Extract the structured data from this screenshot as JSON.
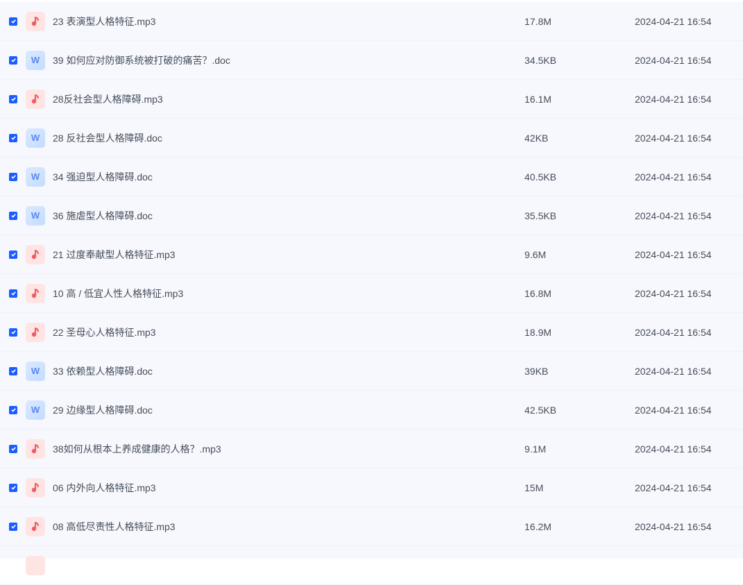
{
  "colors": {
    "checkbox": "#1a5cff",
    "mp3_icon": "#f25b63",
    "doc_icon": "#5a86f0",
    "background": "#f7f8fe"
  },
  "files": [
    {
      "name": "23 表演型人格特征.mp3",
      "type": "mp3",
      "size": "17.8M",
      "date": "2024-04-21 16:54",
      "checked": true
    },
    {
      "name": "39 如何应对防御系统被打破的痛苦？.doc",
      "type": "doc",
      "size": "34.5KB",
      "date": "2024-04-21 16:54",
      "checked": true
    },
    {
      "name": "28反社会型人格障碍.mp3",
      "type": "mp3",
      "size": "16.1M",
      "date": "2024-04-21 16:54",
      "checked": true
    },
    {
      "name": "28 反社会型人格障碍.doc",
      "type": "doc",
      "size": "42KB",
      "date": "2024-04-21 16:54",
      "checked": true
    },
    {
      "name": "34 强迫型人格障碍.doc",
      "type": "doc",
      "size": "40.5KB",
      "date": "2024-04-21 16:54",
      "checked": true
    },
    {
      "name": "36 施虐型人格障碍.doc",
      "type": "doc",
      "size": "35.5KB",
      "date": "2024-04-21 16:54",
      "checked": true
    },
    {
      "name": "21 过度奉献型人格特征.mp3",
      "type": "mp3",
      "size": "9.6M",
      "date": "2024-04-21 16:54",
      "checked": true
    },
    {
      "name": "10 高 / 低宜人性人格特征.mp3",
      "type": "mp3",
      "size": "16.8M",
      "date": "2024-04-21 16:54",
      "checked": true
    },
    {
      "name": "22 圣母心人格特征.mp3",
      "type": "mp3",
      "size": "18.9M",
      "date": "2024-04-21 16:54",
      "checked": true
    },
    {
      "name": "33 依赖型人格障碍.doc",
      "type": "doc",
      "size": "39KB",
      "date": "2024-04-21 16:54",
      "checked": true
    },
    {
      "name": "29 边缘型人格障碍.doc",
      "type": "doc",
      "size": "42.5KB",
      "date": "2024-04-21 16:54",
      "checked": true
    },
    {
      "name": "38如何从根本上养成健康的人格？.mp3",
      "type": "mp3",
      "size": "9.1M",
      "date": "2024-04-21 16:54",
      "checked": true
    },
    {
      "name": "06 内外向人格特征.mp3",
      "type": "mp3",
      "size": "15M",
      "date": "2024-04-21 16:54",
      "checked": true
    },
    {
      "name": "08 高低尽责性人格特征.mp3",
      "type": "mp3",
      "size": "16.2M",
      "date": "2024-04-21 16:54",
      "checked": true
    }
  ],
  "doc_icon_letter": "W"
}
